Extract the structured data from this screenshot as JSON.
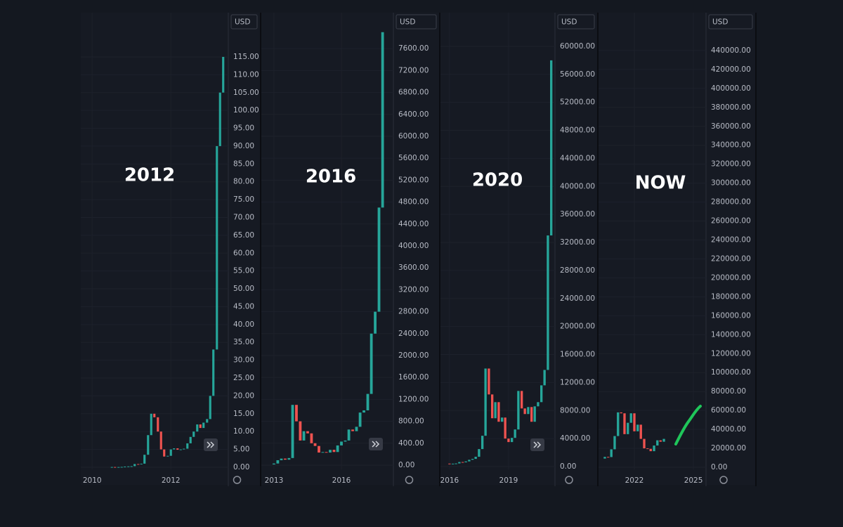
{
  "chart_data": [
    {
      "type": "candlestick",
      "title": "2012",
      "y_axis_label": "USD",
      "up_color": "#26a69a",
      "down_color": "#ef5350",
      "grid": true,
      "x": [
        2010.5,
        2010.58,
        2010.67,
        2010.75,
        2010.83,
        2010.92,
        2011,
        2011.08,
        2011.17,
        2011.25,
        2011.33,
        2011.42,
        2011.5,
        2011.58,
        2011.67,
        2011.75,
        2011.83,
        2011.92,
        2012,
        2012.08,
        2012.17,
        2012.25,
        2012.33,
        2012.42,
        2012.5,
        2012.58,
        2012.67,
        2012.75,
        2012.83,
        2012.92,
        2013,
        2013.08,
        2013.17,
        2013.25,
        2013.33
      ],
      "open": [
        0.05,
        0.07,
        0.06,
        0.06,
        0.1,
        0.2,
        0.25,
        0.3,
        0.9,
        0.8,
        1,
        3.5,
        9,
        15,
        14,
        10,
        5,
        3,
        3.2,
        5,
        5.3,
        4.9,
        5,
        5.2,
        6.7,
        8.5,
        10,
        12,
        11,
        12.5,
        13.5,
        20,
        33,
        90,
        105
      ],
      "values": [
        0.07,
        0.06,
        0.06,
        0.1,
        0.2,
        0.25,
        0.3,
        0.9,
        0.8,
        1,
        3.5,
        9,
        15,
        14,
        10,
        5,
        3,
        3.2,
        5,
        5.3,
        4.9,
        5,
        5.2,
        6.7,
        8.5,
        10,
        12,
        11,
        12.5,
        13.5,
        20,
        33,
        90,
        105,
        115
      ],
      "xlim": [
        2009.71,
        2013.46
      ],
      "xticks": [
        2010,
        2012
      ],
      "ylim": [
        -0.6,
        127.4
      ],
      "yticks": [
        {
          "value": 0,
          "label": "0.00"
        },
        {
          "value": 5,
          "label": "5.00"
        },
        {
          "value": 10,
          "label": "10.00"
        },
        {
          "value": 15,
          "label": "15.00"
        },
        {
          "value": 20,
          "label": "20.00"
        },
        {
          "value": 25,
          "label": "25.00"
        },
        {
          "value": 30,
          "label": "30.00"
        },
        {
          "value": 35,
          "label": "35.00"
        },
        {
          "value": 40,
          "label": "40.00"
        },
        {
          "value": 45,
          "label": "45.00"
        },
        {
          "value": 50,
          "label": "50.00"
        },
        {
          "value": 55,
          "label": "55.00"
        },
        {
          "value": 60,
          "label": "60.00"
        },
        {
          "value": 65,
          "label": "65.00"
        },
        {
          "value": 70,
          "label": "70.00"
        },
        {
          "value": 75,
          "label": "75.00"
        },
        {
          "value": 80,
          "label": "80.00"
        },
        {
          "value": 85,
          "label": "85.00"
        },
        {
          "value": 90,
          "label": "90.00"
        },
        {
          "value": 95,
          "label": "95.00"
        },
        {
          "value": 100,
          "label": "100.00"
        },
        {
          "value": 105,
          "label": "105.00"
        },
        {
          "value": 110,
          "label": "110.00"
        },
        {
          "value": 115,
          "label": "115.00"
        }
      ]
    },
    {
      "type": "candlestick",
      "title": "2016",
      "y_axis_label": "USD",
      "up_color": "#26a69a",
      "down_color": "#ef5350",
      "grid": true,
      "x": [
        2013,
        2013.17,
        2013.33,
        2013.5,
        2013.67,
        2013.83,
        2014,
        2014.17,
        2014.33,
        2014.5,
        2014.67,
        2014.83,
        2015,
        2015.17,
        2015.33,
        2015.5,
        2015.67,
        2015.83,
        2016,
        2016.17,
        2016.33,
        2016.5,
        2016.67,
        2016.83,
        2017,
        2017.17,
        2017.33,
        2017.5,
        2017.67,
        2017.83
      ],
      "open": [
        13,
        30,
        90,
        120,
        100,
        130,
        1100,
        800,
        450,
        620,
        580,
        400,
        350,
        230,
        240,
        230,
        280,
        240,
        360,
        430,
        450,
        650,
        620,
        700,
        960,
        1000,
        1300,
        2400,
        2800,
        4700
      ],
      "values": [
        30,
        90,
        120,
        100,
        130,
        1100,
        800,
        450,
        620,
        580,
        400,
        350,
        230,
        240,
        230,
        280,
        240,
        360,
        430,
        450,
        650,
        620,
        700,
        960,
        1000,
        1300,
        2400,
        2800,
        4700,
        7900
      ],
      "xlim": [
        2012.44,
        2018.31
      ],
      "xticks": [
        2013,
        2016
      ],
      "ylim": [
        -77,
        8256
      ],
      "yticks": [
        {
          "value": 0,
          "label": "0.00"
        },
        {
          "value": 400,
          "label": "400.00"
        },
        {
          "value": 800,
          "label": "800.00"
        },
        {
          "value": 1200,
          "label": "1200.00"
        },
        {
          "value": 1600,
          "label": "1600.00"
        },
        {
          "value": 2000,
          "label": "2000.00"
        },
        {
          "value": 2400,
          "label": "2400.00"
        },
        {
          "value": 2800,
          "label": "2800.00"
        },
        {
          "value": 3200,
          "label": "3200.00"
        },
        {
          "value": 3600,
          "label": "3600.00"
        },
        {
          "value": 4000,
          "label": "4000.00"
        },
        {
          "value": 4400,
          "label": "4400.00"
        },
        {
          "value": 4800,
          "label": "4800.00"
        },
        {
          "value": 5200,
          "label": "5200.00"
        },
        {
          "value": 5600,
          "label": "5600.00"
        },
        {
          "value": 6000,
          "label": "6000.00"
        },
        {
          "value": 6400,
          "label": "6400.00"
        },
        {
          "value": 6800,
          "label": "6800.00"
        },
        {
          "value": 7200,
          "label": "7200.00"
        },
        {
          "value": 7600,
          "label": "7600.00"
        }
      ]
    },
    {
      "type": "candlestick",
      "title": "2020",
      "y_axis_label": "USD",
      "up_color": "#26a69a",
      "down_color": "#ef5350",
      "grid": true,
      "x": [
        2016,
        2016.17,
        2016.33,
        2016.5,
        2016.67,
        2016.83,
        2017,
        2017.17,
        2017.33,
        2017.5,
        2017.67,
        2017.83,
        2018,
        2018.17,
        2018.33,
        2018.5,
        2018.67,
        2018.83,
        2019,
        2019.17,
        2019.33,
        2019.5,
        2019.67,
        2019.83,
        2020,
        2020.17,
        2020.33,
        2020.5,
        2020.67,
        2020.83,
        2021,
        2021.17
      ],
      "open": [
        430,
        400,
        420,
        450,
        650,
        610,
        740,
        970,
        1100,
        1400,
        2500,
        4400,
        14000,
        10300,
        6900,
        9200,
        6400,
        7000,
        4000,
        3500,
        4100,
        5300,
        10800,
        8300,
        7500,
        8500,
        6400,
        8600,
        9200,
        11600,
        13800,
        33000
      ],
      "values": [
        400,
        420,
        450,
        650,
        610,
        740,
        970,
        1100,
        1400,
        2500,
        4400,
        14000,
        10300,
        6900,
        9200,
        6400,
        7000,
        4000,
        3500,
        4100,
        5300,
        10800,
        8300,
        7500,
        8500,
        6400,
        8600,
        9200,
        11600,
        13800,
        33000,
        58000
      ],
      "xlim": [
        2015.54,
        2021.36
      ],
      "xticks": [
        2016,
        2019
      ],
      "ylim": [
        -400,
        64810
      ],
      "yticks": [
        {
          "value": 0,
          "label": "0.00"
        },
        {
          "value": 4000,
          "label": "4000.00"
        },
        {
          "value": 8000,
          "label": "8000.00"
        },
        {
          "value": 12000,
          "label": "12000.00"
        },
        {
          "value": 16000,
          "label": "16000.00"
        },
        {
          "value": 20000,
          "label": "20000.00"
        },
        {
          "value": 24000,
          "label": "24000.00"
        },
        {
          "value": 28000,
          "label": "28000.00"
        },
        {
          "value": 32000,
          "label": "32000.00"
        },
        {
          "value": 36000,
          "label": "36000.00"
        },
        {
          "value": 40000,
          "label": "40000.00"
        },
        {
          "value": 44000,
          "label": "44000.00"
        },
        {
          "value": 48000,
          "label": "48000.00"
        },
        {
          "value": 52000,
          "label": "52000.00"
        },
        {
          "value": 56000,
          "label": "56000.00"
        },
        {
          "value": 60000,
          "label": "60000.00"
        }
      ]
    },
    {
      "type": "candlestick",
      "title": "NOW",
      "y_axis_label": "USD",
      "up_color": "#26a69a",
      "down_color": "#ef5350",
      "grid": true,
      "x": [
        2020.5,
        2020.67,
        2020.83,
        2021,
        2021.17,
        2021.33,
        2021.5,
        2021.67,
        2021.83,
        2022,
        2022.17,
        2022.33,
        2022.5,
        2022.67,
        2022.83,
        2023,
        2023.17,
        2023.33,
        2023.5
      ],
      "open": [
        9200,
        11000,
        10800,
        19000,
        33000,
        58000,
        57000,
        35000,
        47000,
        57000,
        38000,
        45000,
        30000,
        20000,
        19500,
        17000,
        23000,
        28500,
        27000
      ],
      "values": [
        11000,
        10800,
        19000,
        33000,
        58000,
        57000,
        35000,
        47000,
        57000,
        38000,
        45000,
        30000,
        20000,
        19500,
        17000,
        23000,
        28500,
        27000,
        30000
      ],
      "xlim": [
        2020.18,
        2025.64
      ],
      "xticks": [
        2022,
        2025
      ],
      "ylim": [
        -2200,
        480000
      ],
      "yticks": [
        {
          "value": 0,
          "label": "0.00"
        },
        {
          "value": 20000,
          "label": "20000.00"
        },
        {
          "value": 40000,
          "label": "40000.00"
        },
        {
          "value": 60000,
          "label": "60000.00"
        },
        {
          "value": 80000,
          "label": "80000.00"
        },
        {
          "value": 100000,
          "label": "100000.00"
        },
        {
          "value": 120000,
          "label": "120000.00"
        },
        {
          "value": 140000,
          "label": "140000.00"
        },
        {
          "value": 160000,
          "label": "160000.00"
        },
        {
          "value": 180000,
          "label": "180000.00"
        },
        {
          "value": 200000,
          "label": "200000.00"
        },
        {
          "value": 220000,
          "label": "220000.00"
        },
        {
          "value": 240000,
          "label": "240000.00"
        },
        {
          "value": 260000,
          "label": "260000.00"
        },
        {
          "value": 280000,
          "label": "280000.00"
        },
        {
          "value": 300000,
          "label": "300000.00"
        },
        {
          "value": 320000,
          "label": "320000.00"
        },
        {
          "value": 340000,
          "label": "340000.00"
        },
        {
          "value": 360000,
          "label": "360000.00"
        },
        {
          "value": 380000,
          "label": "380000.00"
        },
        {
          "value": 400000,
          "label": "400000.00"
        },
        {
          "value": 420000,
          "label": "420000.00"
        },
        {
          "value": 440000,
          "label": "440000.00"
        }
      ]
    }
  ]
}
